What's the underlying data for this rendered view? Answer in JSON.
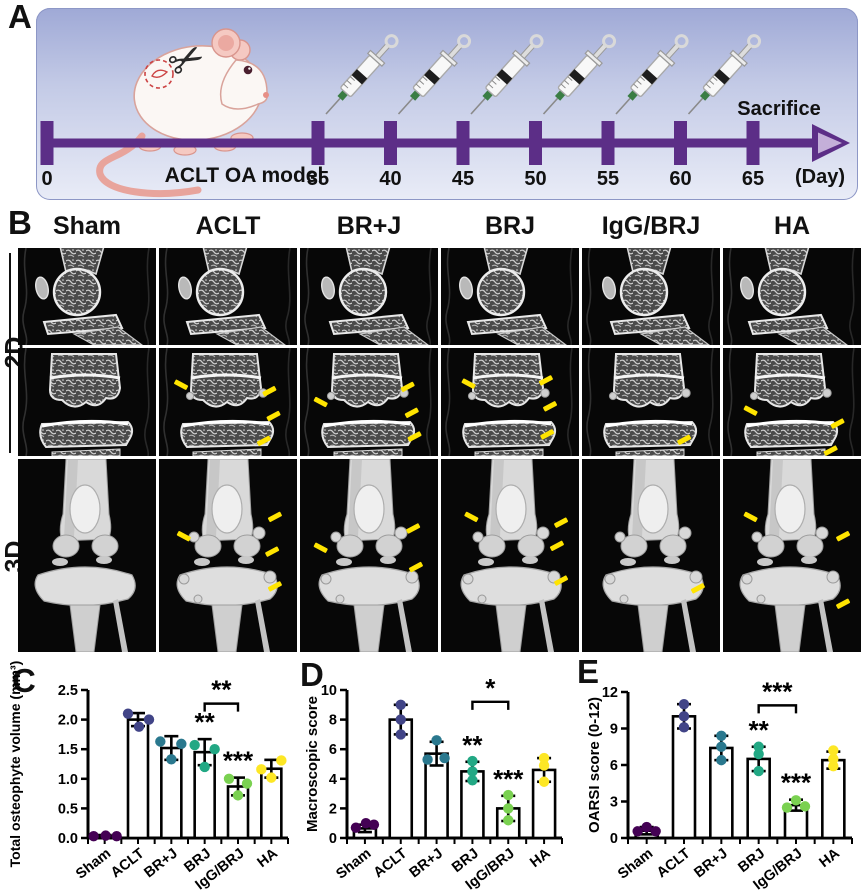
{
  "figure": {
    "panel_a": {
      "label": "A",
      "model_label": "ACLT OA model",
      "sacrifice_label": "Sacrifice",
      "day_axis_label": "(Day)",
      "day_ticks": [
        "0",
        "35",
        "40",
        "45",
        "50",
        "55",
        "60",
        "65"
      ],
      "injection_days": [
        "35",
        "40",
        "45",
        "50",
        "55",
        "60"
      ],
      "timeline_color": "#5c2e87",
      "arrow_inner_color": "#c4afd9",
      "icons": [
        "mouse-icon",
        "scissors-icon",
        "surgery-site-icon",
        "syringe-icon",
        "timeline-arrow-icon"
      ]
    },
    "panel_b": {
      "label": "B",
      "columns": [
        "Sham",
        "ACLT",
        "BR+J",
        "BRJ",
        "IgG/BRJ",
        "HA"
      ],
      "row_group_labels": [
        "2D",
        "3D"
      ],
      "arrow_color": "#ffe400",
      "arrows": {
        "row2": [
          [],
          [
            [
              0.16,
              0.34,
              "L"
            ],
            [
              0.8,
              0.4,
              "R"
            ],
            [
              0.83,
              0.63,
              "R"
            ],
            [
              0.76,
              0.86,
              "R"
            ]
          ],
          [
            [
              0.15,
              0.5,
              "L"
            ],
            [
              0.78,
              0.36,
              "R"
            ],
            [
              0.81,
              0.6,
              "R"
            ],
            [
              0.83,
              0.82,
              "R"
            ]
          ],
          [
            [
              0.2,
              0.33,
              "L"
            ],
            [
              0.76,
              0.3,
              "R"
            ],
            [
              0.79,
              0.54,
              "R"
            ],
            [
              0.77,
              0.8,
              "R"
            ]
          ],
          [
            [
              0.74,
              0.85,
              "R"
            ]
          ],
          [
            [
              0.2,
              0.58,
              "L"
            ],
            [
              0.83,
              0.7,
              "R"
            ],
            [
              0.78,
              0.95,
              "R"
            ]
          ]
        ],
        "row3": [
          [],
          [
            [
              0.18,
              0.4,
              "L"
            ],
            [
              0.84,
              0.3,
              "R"
            ],
            [
              0.82,
              0.48,
              "R"
            ],
            [
              0.84,
              0.66,
              "R"
            ]
          ],
          [
            [
              0.15,
              0.46,
              "L"
            ],
            [
              0.82,
              0.36,
              "R"
            ],
            [
              0.84,
              0.56,
              "R"
            ]
          ],
          [
            [
              0.22,
              0.3,
              "L"
            ],
            [
              0.87,
              0.33,
              "R"
            ],
            [
              0.84,
              0.45,
              "R"
            ],
            [
              0.87,
              0.63,
              "R"
            ]
          ],
          [
            [
              0.84,
              0.67,
              "R"
            ]
          ],
          [
            [
              0.2,
              0.3,
              "L"
            ],
            [
              0.87,
              0.4,
              "R"
            ],
            [
              0.87,
              0.75,
              "R"
            ]
          ]
        ]
      }
    },
    "panel_c_label": "C",
    "panel_d_label": "D",
    "panel_e_label": "E",
    "group_colors": {
      "Sham": "#440154",
      "ACLT": "#414487",
      "BR+J": "#2a788e",
      "BRJ": "#22a884",
      "IgG/BRJ": "#7ad151",
      "HA": "#fde725"
    }
  },
  "chart_data": [
    {
      "type": "bar",
      "panel": "C",
      "ylabel": "Total osteophyte volume (mm³)",
      "xlabel": "",
      "ylim": [
        0,
        2.5
      ],
      "yticks": [
        "0.0",
        "0.5",
        "1.0",
        "1.5",
        "2.0",
        "2.5"
      ],
      "categories": [
        "Sham",
        "ACLT",
        "BR+J",
        "BRJ",
        "IgG/BRJ",
        "HA"
      ],
      "means": [
        0.03,
        2.0,
        1.52,
        1.45,
        0.87,
        1.17
      ],
      "errors": [
        0.02,
        0.11,
        0.2,
        0.22,
        0.15,
        0.15
      ],
      "dots": [
        [
          [
            0.03,
            -11
          ],
          [
            0.04,
            1
          ],
          [
            0.03,
            12
          ]
        ],
        [
          [
            2.1,
            -10
          ],
          [
            2.0,
            11
          ],
          [
            1.88,
            1
          ]
        ],
        [
          [
            1.63,
            -11
          ],
          [
            1.59,
            10
          ],
          [
            1.33,
            0
          ]
        ],
        [
          [
            1.57,
            -10
          ],
          [
            1.5,
            10
          ],
          [
            1.2,
            0
          ]
        ],
        [
          [
            1.0,
            -9
          ],
          [
            0.92,
            9
          ],
          [
            0.72,
            0
          ]
        ],
        [
          [
            1.31,
            10
          ],
          [
            1.16,
            -10
          ],
          [
            1.02,
            0
          ]
        ]
      ],
      "sig": [
        "",
        "",
        "",
        "**",
        "***",
        ""
      ],
      "bracket": {
        "from": 3,
        "to": 4,
        "y": 2.27,
        "label": "**"
      }
    },
    {
      "type": "bar",
      "panel": "D",
      "ylabel": "Macroscopic score",
      "xlabel": "",
      "ylim": [
        0,
        10
      ],
      "yticks": [
        "0",
        "2",
        "4",
        "6",
        "8",
        "10"
      ],
      "categories": [
        "Sham",
        "ACLT",
        "BR+J",
        "BRJ",
        "IgG/BRJ",
        "HA"
      ],
      "means": [
        0.65,
        8.0,
        5.7,
        4.5,
        2.0,
        4.6
      ],
      "errors": [
        0.25,
        1.0,
        0.8,
        0.65,
        0.85,
        0.8
      ],
      "dots": [
        [
          [
            0.7,
            -9
          ],
          [
            1.0,
            1
          ],
          [
            0.9,
            9
          ]
        ],
        [
          [
            9.0,
            0
          ],
          [
            8.0,
            0
          ],
          [
            7.0,
            0
          ]
        ],
        [
          [
            6.6,
            0
          ],
          [
            5.3,
            -9
          ],
          [
            5.4,
            8
          ]
        ],
        [
          [
            5.2,
            0
          ],
          [
            4.5,
            0
          ],
          [
            3.9,
            0
          ]
        ],
        [
          [
            2.9,
            0
          ],
          [
            2.0,
            0
          ],
          [
            1.2,
            0
          ]
        ],
        [
          [
            5.4,
            0
          ],
          [
            4.9,
            0
          ],
          [
            3.8,
            0
          ]
        ]
      ],
      "sig": [
        "",
        "",
        "",
        "**",
        "***",
        ""
      ],
      "bracket": {
        "from": 3,
        "to": 4,
        "y": 9.2,
        "label": "*"
      }
    },
    {
      "type": "bar",
      "panel": "E",
      "ylabel": "OARSI score  (0-12)",
      "xlabel": "",
      "ylim": [
        0,
        12
      ],
      "yticks": [
        "0",
        "3",
        "6",
        "9",
        "12"
      ],
      "categories": [
        "Sham",
        "ACLT",
        "BR+J",
        "BRJ",
        "IgG/BRJ",
        "HA"
      ],
      "means": [
        0.6,
        10.0,
        7.4,
        6.5,
        2.7,
        6.4
      ],
      "errors": [
        0.3,
        1.0,
        1.0,
        1.0,
        0.45,
        0.7
      ],
      "dots": [
        [
          [
            0.9,
            0
          ],
          [
            0.55,
            -9
          ],
          [
            0.55,
            9
          ]
        ],
        [
          [
            11.0,
            0
          ],
          [
            10.0,
            0
          ],
          [
            9.1,
            0
          ]
        ],
        [
          [
            8.4,
            0
          ],
          [
            7.5,
            0
          ],
          [
            6.4,
            0
          ]
        ],
        [
          [
            7.5,
            0
          ],
          [
            6.9,
            0
          ],
          [
            5.5,
            0
          ]
        ],
        [
          [
            3.1,
            0
          ],
          [
            2.5,
            -9
          ],
          [
            2.6,
            9
          ]
        ],
        [
          [
            7.2,
            0
          ],
          [
            6.5,
            0
          ],
          [
            5.9,
            0
          ]
        ]
      ],
      "sig": [
        "",
        "",
        "",
        "**",
        "***",
        ""
      ],
      "bracket": {
        "from": 3,
        "to": 4,
        "y": 10.9,
        "label": "***"
      }
    }
  ]
}
